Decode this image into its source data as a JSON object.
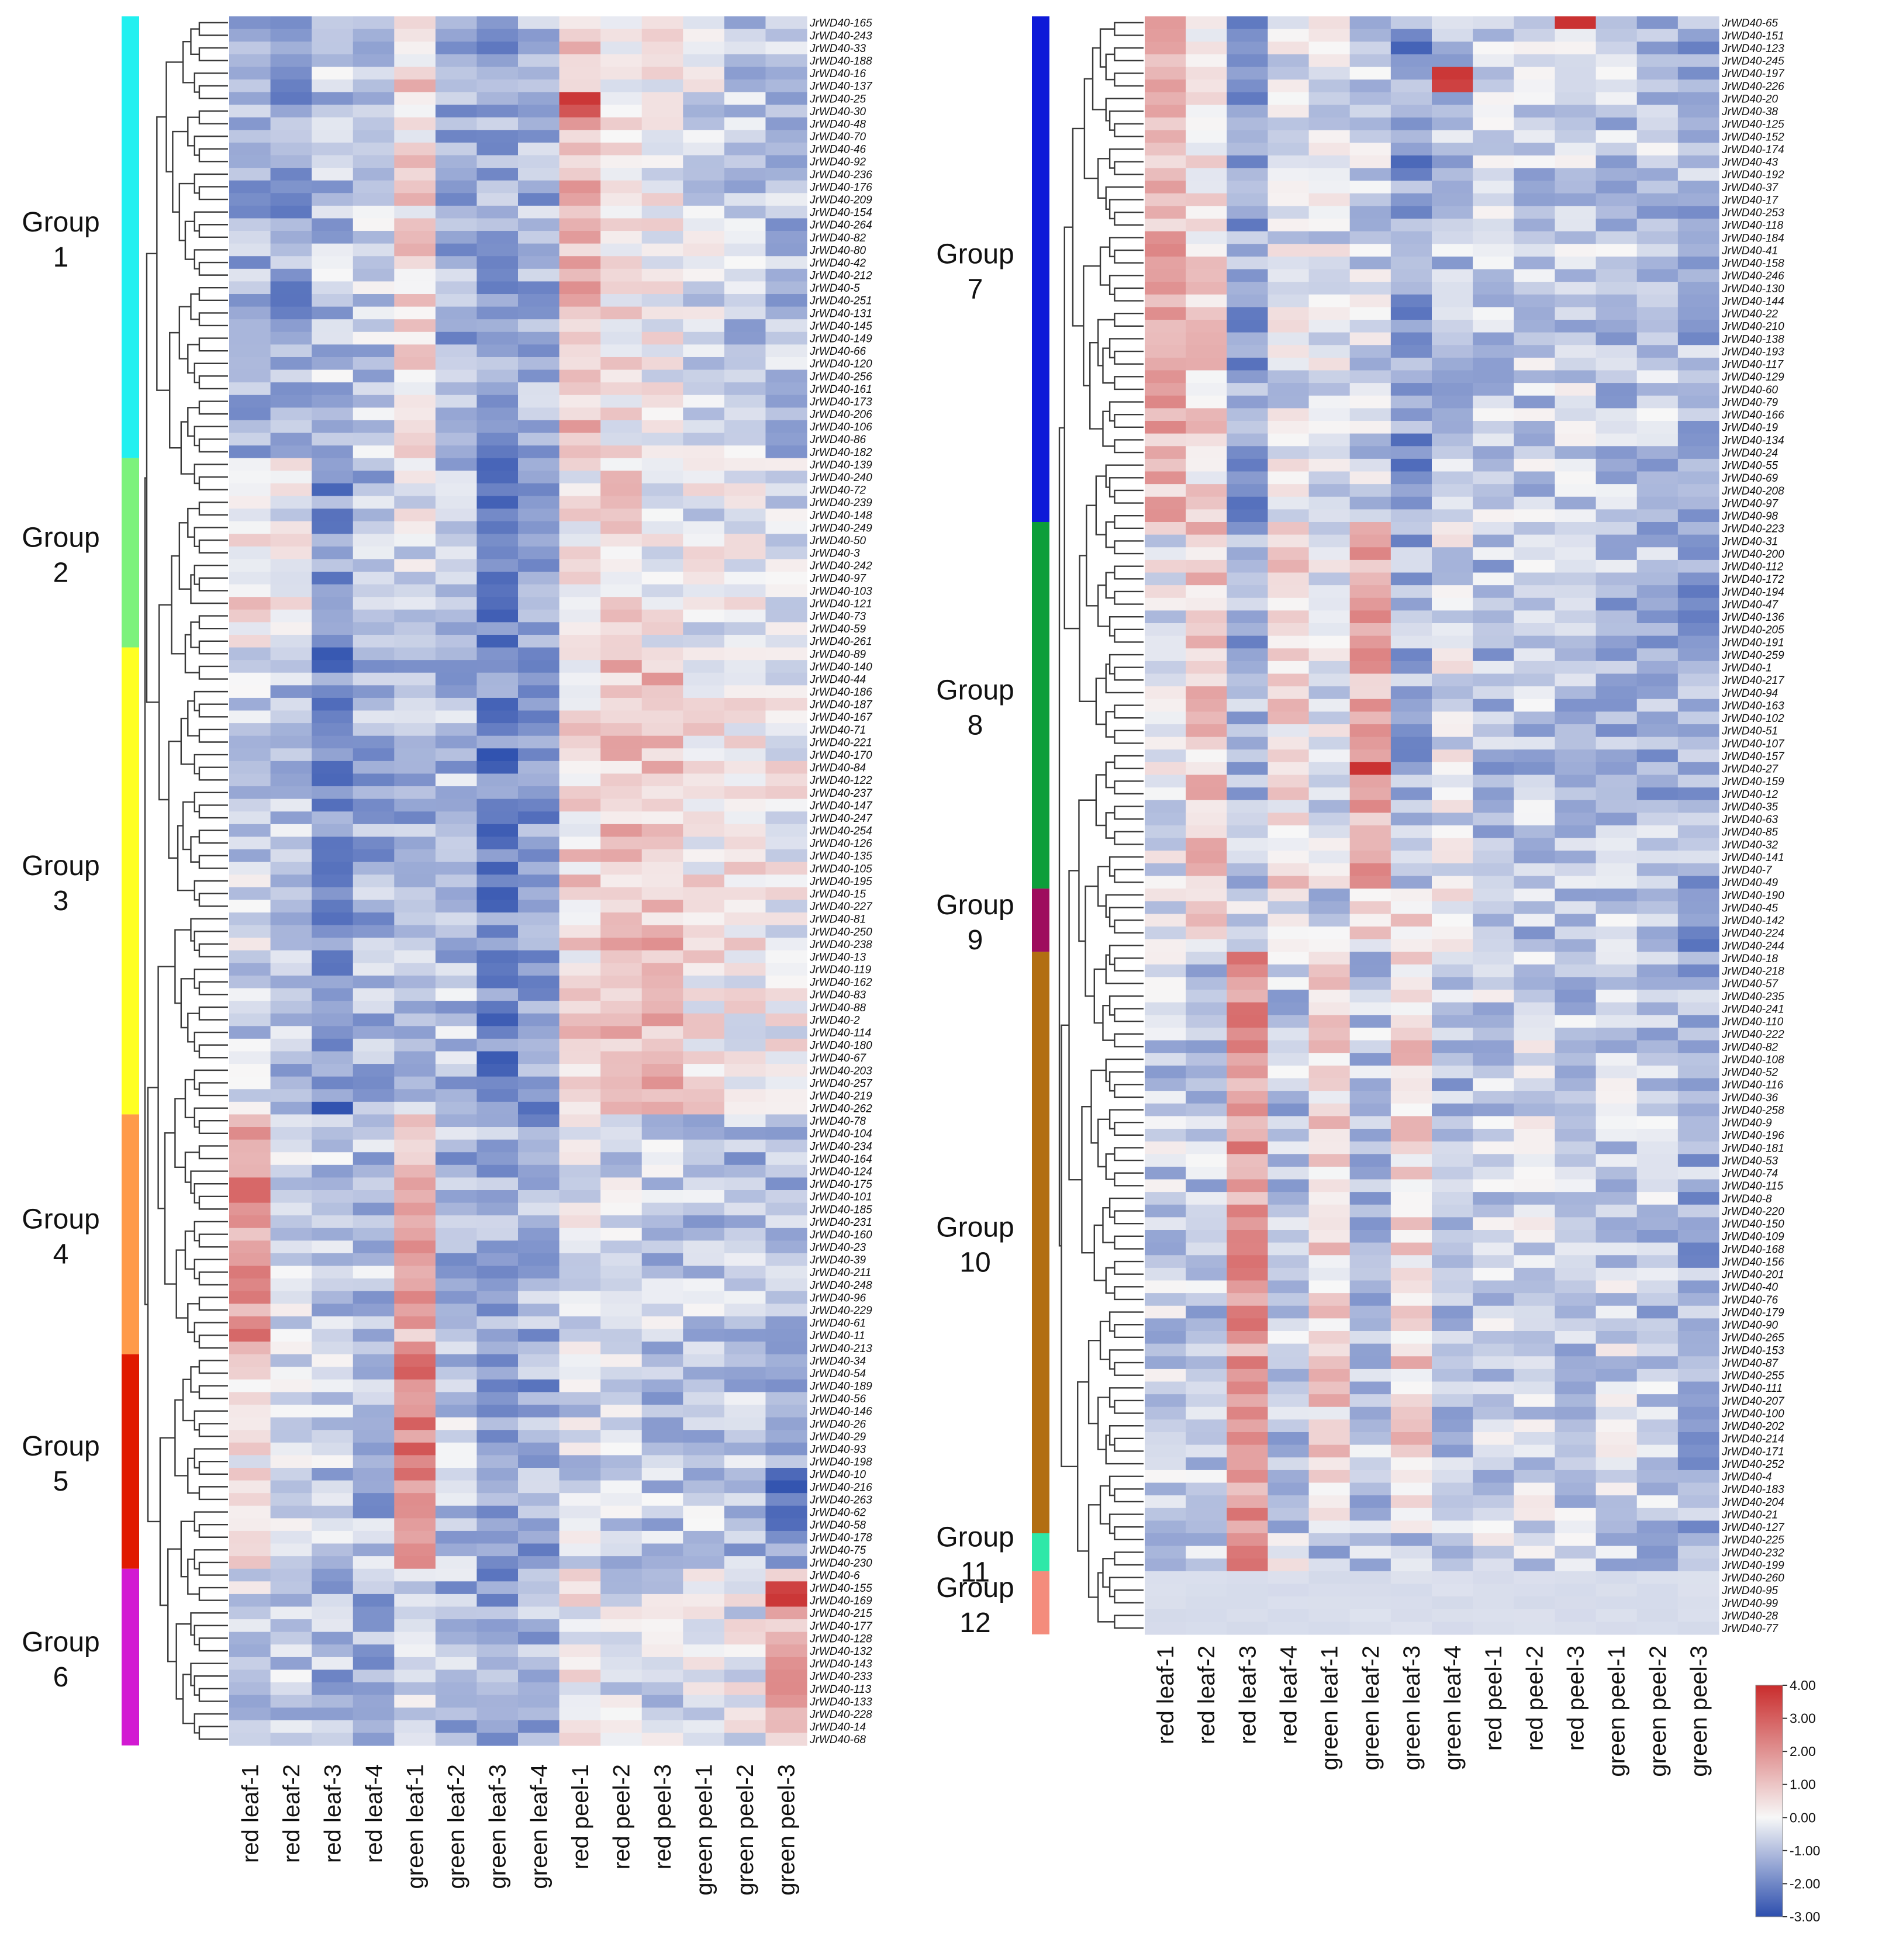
{
  "chart_data": {
    "type": "heatmap",
    "title": "",
    "color_scale": {
      "min": -3.0,
      "max": 4.0,
      "ticks": [
        "4.00",
        "3.00",
        "2.00",
        "1.00",
        "0.00",
        "-1.00",
        "-2.00",
        "-3.00"
      ],
      "low_color": "#2d4fae",
      "mid_color": "#f7f7f7",
      "high_color": "#c92d2d"
    },
    "samples": [
      "red leaf-1",
      "red leaf-2",
      "red leaf-3",
      "red leaf-4",
      "green leaf-1",
      "green leaf-2",
      "green leaf-3",
      "green leaf-4",
      "red peel-1",
      "red peel-2",
      "red peel-3",
      "green peel-1",
      "green peel-2",
      "green peel-3"
    ],
    "panels": [
      {
        "name": "left",
        "groups": [
          {
            "label": [
              "Group",
              "1"
            ],
            "color": "#22f0f0",
            "genes": [
              "JrWD40-165",
              "JrWD40-243",
              "JrWD40-33",
              "JrWD40-188",
              "JrWD40-16",
              "JrWD40-137",
              "JrWD40-25",
              "JrWD40-30",
              "JrWD40-48",
              "JrWD40-70",
              "JrWD40-46",
              "JrWD40-92",
              "JrWD40-236",
              "JrWD40-176",
              "JrWD40-209",
              "JrWD40-154",
              "JrWD40-264",
              "JrWD40-82",
              "JrWD40-80",
              "JrWD40-42",
              "JrWD40-212",
              "JrWD40-5",
              "JrWD40-251",
              "JrWD40-131",
              "JrWD40-145",
              "JrWD40-149",
              "JrWD40-66",
              "JrWD40-120",
              "JrWD40-256",
              "JrWD40-161",
              "JrWD40-173",
              "JrWD40-206",
              "JrWD40-106",
              "JrWD40-86",
              "JrWD40-182"
            ]
          },
          {
            "label": [
              "Group",
              "2"
            ],
            "color": "#7cf27c",
            "genes": [
              "JrWD40-139",
              "JrWD40-240",
              "JrWD40-72",
              "JrWD40-239",
              "JrWD40-148",
              "JrWD40-249",
              "JrWD40-50",
              "JrWD40-3",
              "JrWD40-242",
              "JrWD40-97",
              "JrWD40-103",
              "JrWD40-121",
              "JrWD40-73",
              "JrWD40-59",
              "JrWD40-261"
            ]
          },
          {
            "label": [
              "Group",
              "3"
            ],
            "color": "#ffff22",
            "genes": [
              "JrWD40-89",
              "JrWD40-140",
              "JrWD40-44",
              "JrWD40-186",
              "JrWD40-187",
              "JrWD40-167",
              "JrWD40-71",
              "JrWD40-221",
              "JrWD40-170",
              "JrWD40-84",
              "JrWD40-122",
              "JrWD40-237",
              "JrWD40-147",
              "JrWD40-247",
              "JrWD40-254",
              "JrWD40-126",
              "JrWD40-135",
              "JrWD40-105",
              "JrWD40-195",
              "JrWD40-15",
              "JrWD40-227",
              "JrWD40-81",
              "JrWD40-250",
              "JrWD40-238",
              "JrWD40-13",
              "JrWD40-119",
              "JrWD40-162",
              "JrWD40-83",
              "JrWD40-88",
              "JrWD40-2",
              "JrWD40-114",
              "JrWD40-180",
              "JrWD40-67",
              "JrWD40-203",
              "JrWD40-257",
              "JrWD40-219",
              "JrWD40-262"
            ]
          },
          {
            "label": [
              "Group",
              "4"
            ],
            "color": "#ff9a4a",
            "genes": [
              "JrWD40-78",
              "JrWD40-104",
              "JrWD40-234",
              "JrWD40-164",
              "JrWD40-124",
              "JrWD40-175",
              "JrWD40-101",
              "JrWD40-185",
              "JrWD40-231",
              "JrWD40-160",
              "JrWD40-23",
              "JrWD40-39",
              "JrWD40-211",
              "JrWD40-248",
              "JrWD40-96",
              "JrWD40-229",
              "JrWD40-61",
              "JrWD40-11",
              "JrWD40-213"
            ]
          },
          {
            "label": [
              "Group",
              "5"
            ],
            "color": "#e01a00",
            "genes": [
              "JrWD40-34",
              "JrWD40-54",
              "JrWD40-189",
              "JrWD40-56",
              "JrWD40-146",
              "JrWD40-26",
              "JrWD40-29",
              "JrWD40-93",
              "JrWD40-198",
              "JrWD40-10",
              "JrWD40-216",
              "JrWD40-263",
              "JrWD40-62",
              "JrWD40-58",
              "JrWD40-178",
              "JrWD40-75",
              "JrWD40-230"
            ]
          },
          {
            "label": [
              "Group",
              "6"
            ],
            "color": "#d21ad2",
            "genes": [
              "JrWD40-6",
              "JrWD40-155",
              "JrWD40-169",
              "JrWD40-215",
              "JrWD40-177",
              "JrWD40-128",
              "JrWD40-132",
              "JrWD40-143",
              "JrWD40-233",
              "JrWD40-113",
              "JrWD40-133",
              "JrWD40-228",
              "JrWD40-14",
              "JrWD40-68"
            ]
          }
        ]
      },
      {
        "name": "right",
        "groups": [
          {
            "label": [
              "Group",
              "7"
            ],
            "color": "#0e1ad8",
            "genes": [
              "JrWD40-65",
              "JrWD40-151",
              "JrWD40-123",
              "JrWD40-245",
              "JrWD40-197",
              "JrWD40-226",
              "JrWD40-20",
              "JrWD40-38",
              "JrWD40-125",
              "JrWD40-152",
              "JrWD40-174",
              "JrWD40-43",
              "JrWD40-192",
              "JrWD40-37",
              "JrWD40-17",
              "JrWD40-253",
              "JrWD40-118",
              "JrWD40-184",
              "JrWD40-41",
              "JrWD40-158",
              "JrWD40-246",
              "JrWD40-130",
              "JrWD40-144",
              "JrWD40-22",
              "JrWD40-210",
              "JrWD40-138",
              "JrWD40-193",
              "JrWD40-117",
              "JrWD40-129",
              "JrWD40-60",
              "JrWD40-79",
              "JrWD40-166",
              "JrWD40-19",
              "JrWD40-134",
              "JrWD40-24",
              "JrWD40-55",
              "JrWD40-69",
              "JrWD40-208",
              "JrWD40-97",
              "JrWD40-98"
            ]
          },
          {
            "label": [
              "Group",
              "8"
            ],
            "color": "#0c9e3a",
            "genes": [
              "JrWD40-223",
              "JrWD40-31",
              "JrWD40-200",
              "JrWD40-112",
              "JrWD40-172",
              "JrWD40-194",
              "JrWD40-47",
              "JrWD40-136",
              "JrWD40-205",
              "JrWD40-191",
              "JrWD40-259",
              "JrWD40-1",
              "JrWD40-217",
              "JrWD40-94",
              "JrWD40-163",
              "JrWD40-102",
              "JrWD40-51",
              "JrWD40-107",
              "JrWD40-157",
              "JrWD40-27",
              "JrWD40-159",
              "JrWD40-12",
              "JrWD40-35",
              "JrWD40-63",
              "JrWD40-85",
              "JrWD40-32",
              "JrWD40-141",
              "JrWD40-7",
              "JrWD40-49"
            ]
          },
          {
            "label": [
              "Group",
              "9"
            ],
            "color": "#9e0c5e",
            "genes": [
              "JrWD40-190",
              "JrWD40-45",
              "JrWD40-142",
              "JrWD40-224",
              "JrWD40-244"
            ]
          },
          {
            "label": [
              "Group",
              "10"
            ],
            "color": "#b26e12",
            "genes": [
              "JrWD40-18",
              "JrWD40-218",
              "JrWD40-57",
              "JrWD40-235",
              "JrWD40-241",
              "JrWD40-110",
              "JrWD40-222",
              "JrWD40-82",
              "JrWD40-108",
              "JrWD40-52",
              "JrWD40-116",
              "JrWD40-36",
              "JrWD40-258",
              "JrWD40-9",
              "JrWD40-196",
              "JrWD40-181",
              "JrWD40-53",
              "JrWD40-74",
              "JrWD40-115",
              "JrWD40-8",
              "JrWD40-220",
              "JrWD40-150",
              "JrWD40-109",
              "JrWD40-168",
              "JrWD40-156",
              "JrWD40-201",
              "JrWD40-40",
              "JrWD40-76",
              "JrWD40-179",
              "JrWD40-90",
              "JrWD40-265",
              "JrWD40-153",
              "JrWD40-87",
              "JrWD40-255",
              "JrWD40-111",
              "JrWD40-207",
              "JrWD40-100",
              "JrWD40-202",
              "JrWD40-214",
              "JrWD40-171",
              "JrWD40-252",
              "JrWD40-4",
              "JrWD40-183",
              "JrWD40-204",
              "JrWD40-21",
              "JrWD40-127"
            ]
          },
          {
            "label": [
              "Group",
              "11"
            ],
            "color": "#2ee8a8",
            "genes": [
              "JrWD40-225",
              "JrWD40-232",
              "JrWD40-199"
            ]
          },
          {
            "label": [
              "Group",
              "12"
            ],
            "color": "#f48c7c",
            "genes": [
              "JrWD40-260",
              "JrWD40-95",
              "JrWD40-99",
              "JrWD40-28",
              "JrWD40-77"
            ]
          }
        ]
      }
    ],
    "highlights": [
      {
        "gene": "JrWD40-25",
        "sample": "red peel-1",
        "value": 3.8
      },
      {
        "gene": "JrWD40-30",
        "sample": "red peel-1",
        "value": 3.2
      },
      {
        "gene": "JrWD40-65",
        "sample": "red peel-3",
        "value": 3.9
      },
      {
        "gene": "JrWD40-197",
        "sample": "green leaf-4",
        "value": 3.8
      },
      {
        "gene": "JrWD40-226",
        "sample": "green leaf-4",
        "value": 3.6
      },
      {
        "gene": "JrWD40-27",
        "sample": "green leaf-2",
        "value": 3.9
      },
      {
        "gene": "JrWD40-155",
        "sample": "green peel-3",
        "value": 3.6
      },
      {
        "gene": "JrWD40-169",
        "sample": "green peel-3",
        "value": 3.8
      },
      {
        "gene": "JrWD40-216",
        "sample": "green peel-3",
        "value": -2.9
      }
    ]
  }
}
